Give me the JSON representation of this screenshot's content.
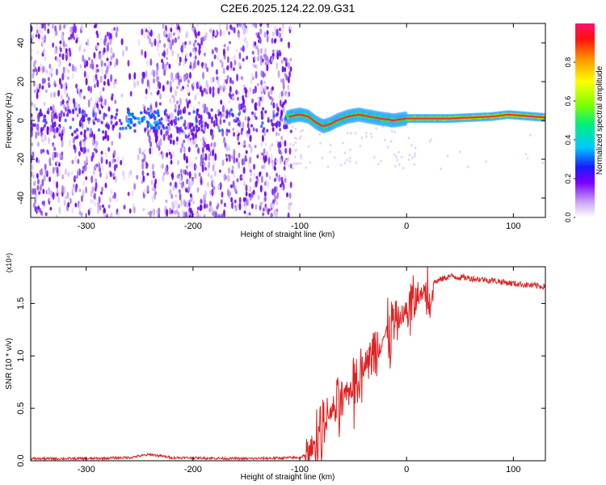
{
  "title": "C2E6.2025.124.22.09.G31",
  "chart_data": [
    {
      "type": "heatmap",
      "xlabel": "Height of straight line (km)",
      "ylabel": "Frequency (Hz)",
      "xlim": [
        -352,
        130
      ],
      "ylim": [
        -50,
        50
      ],
      "x_ticks": [
        "-300",
        "-200",
        "-100",
        "0",
        "100"
      ],
      "y_ticks": [
        "40",
        "20",
        "0",
        "-20",
        "-40"
      ],
      "colorbar": {
        "label": "Normalized spectral amplitude",
        "range": [
          0,
          1
        ],
        "ticks": [
          "0.0",
          "0.2",
          "0.4",
          "0.6",
          "0.8"
        ]
      },
      "line_trace": [
        {
          "x": -110,
          "y": 2
        },
        {
          "x": -100,
          "y": 3
        },
        {
          "x": -92,
          "y": 2
        },
        {
          "x": -85,
          "y": -1
        },
        {
          "x": -78,
          "y": -3
        },
        {
          "x": -72,
          "y": -2
        },
        {
          "x": -65,
          "y": 0
        },
        {
          "x": -55,
          "y": 2
        },
        {
          "x": -45,
          "y": 3
        },
        {
          "x": -35,
          "y": 2
        },
        {
          "x": -25,
          "y": 1
        },
        {
          "x": -12,
          "y": 0
        },
        {
          "x": 0,
          "y": 1
        },
        {
          "x": 40,
          "y": 1
        },
        {
          "x": 80,
          "y": 2
        },
        {
          "x": 95,
          "y": 3
        },
        {
          "x": 130,
          "y": 1.5
        }
      ]
    },
    {
      "type": "line",
      "xlabel": "Height of straight line (km)",
      "ylabel": "SNR (10 * v/v)",
      "y_multiplier": "(x10⁴)",
      "xlim": [
        -352,
        130
      ],
      "ylim": [
        0,
        1.85
      ],
      "x_ticks": [
        "-300",
        "-200",
        "-100",
        "0",
        "100"
      ],
      "y_ticks": [
        "0.0",
        "0.5",
        "1.0",
        "1.5"
      ],
      "color": "#e02020",
      "series": [
        {
          "values": [
            {
              "x": -352,
              "y": 0.02
            },
            {
              "x": -300,
              "y": 0.02
            },
            {
              "x": -260,
              "y": 0.03
            },
            {
              "x": -240,
              "y": 0.06
            },
            {
              "x": -220,
              "y": 0.03
            },
            {
              "x": -150,
              "y": 0.02
            },
            {
              "x": -100,
              "y": 0.03
            },
            {
              "x": -90,
              "y": 0.08
            },
            {
              "x": -80,
              "y": 0.3
            },
            {
              "x": -72,
              "y": 0.45
            },
            {
              "x": -60,
              "y": 0.55
            },
            {
              "x": -50,
              "y": 0.75
            },
            {
              "x": -40,
              "y": 0.9
            },
            {
              "x": -30,
              "y": 1.05
            },
            {
              "x": -20,
              "y": 1.2
            },
            {
              "x": -10,
              "y": 1.3
            },
            {
              "x": 0,
              "y": 1.42
            },
            {
              "x": 10,
              "y": 1.55
            },
            {
              "x": 25,
              "y": 1.7
            },
            {
              "x": 40,
              "y": 1.76
            },
            {
              "x": 60,
              "y": 1.74
            },
            {
              "x": 80,
              "y": 1.72
            },
            {
              "x": 100,
              "y": 1.69
            },
            {
              "x": 130,
              "y": 1.66
            }
          ]
        }
      ]
    }
  ]
}
